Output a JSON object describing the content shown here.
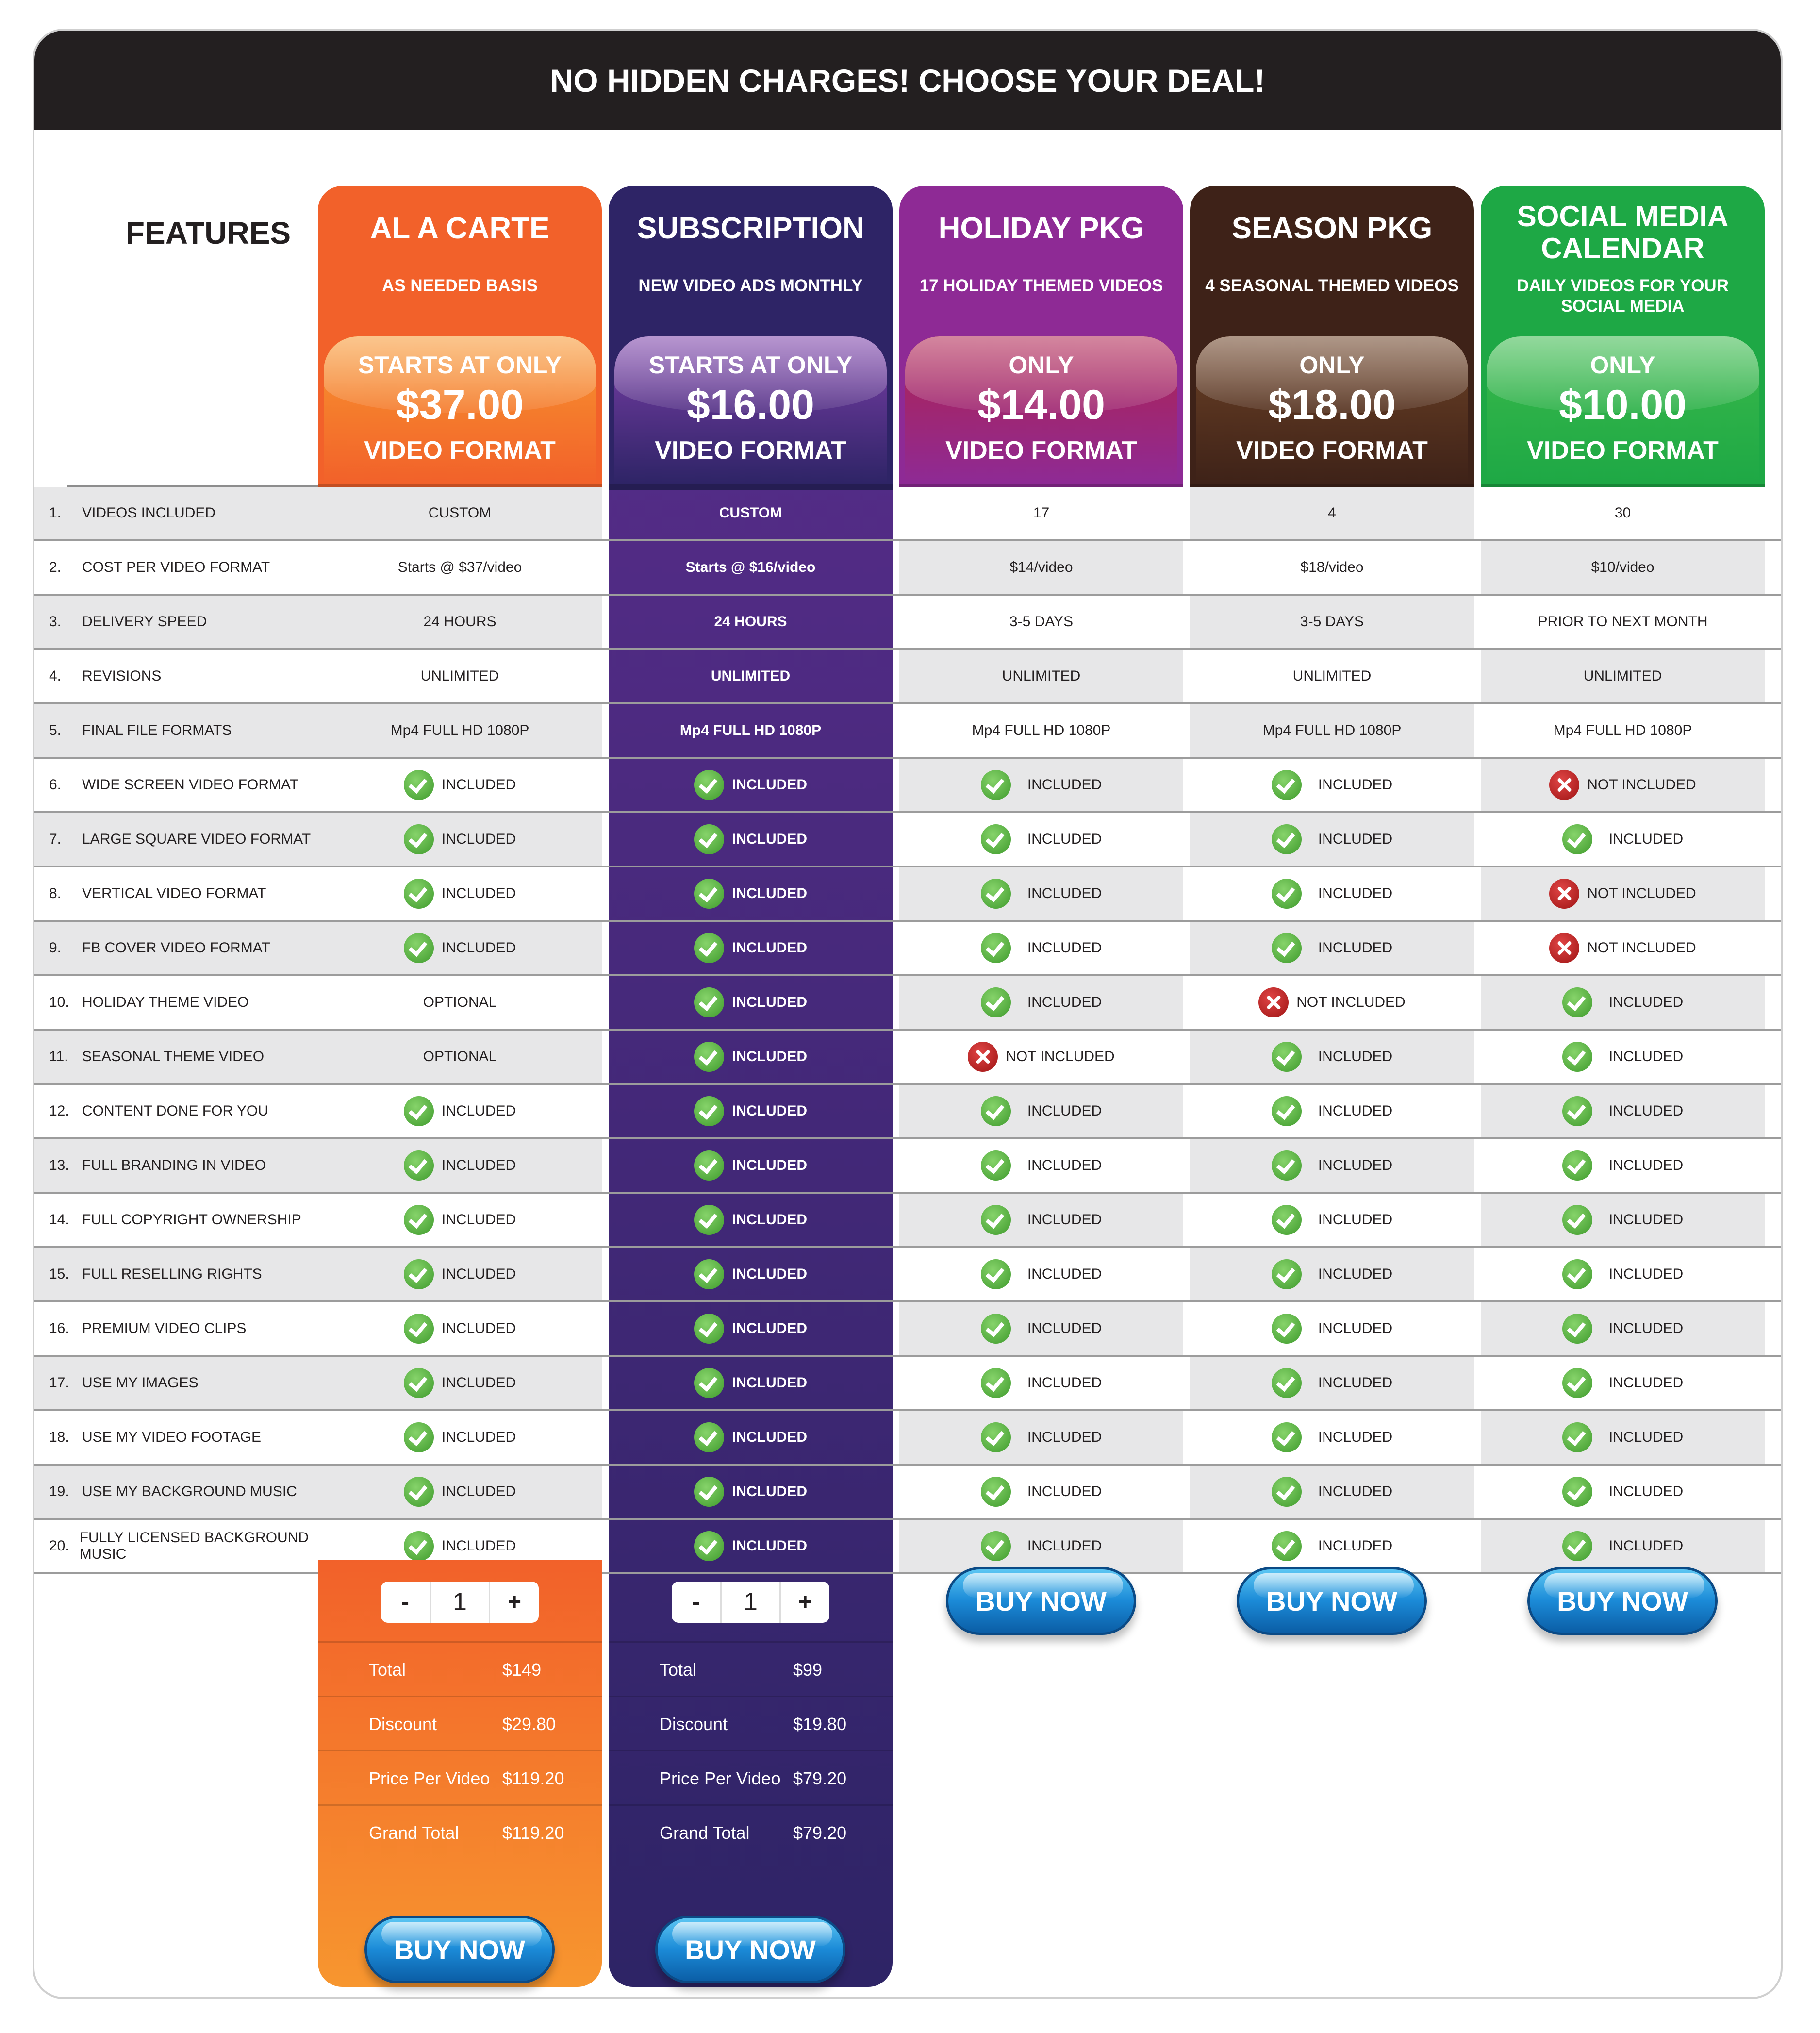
{
  "banner": {
    "title": "NO HIDDEN CHARGES! CHOOSE YOUR DEAL!"
  },
  "features_title": "FEATURES",
  "plans": [
    {
      "name": "AL A CARTE",
      "subtitle": "AS NEEDED BASIS",
      "price_prefix": "STARTS AT ONLY",
      "price": "$37.00",
      "price_suffix": "VIDEO FORMAT",
      "color": "#f2612a",
      "price_color": "#f7962f"
    },
    {
      "name": "SUBSCRIPTION",
      "subtitle": "NEW VIDEO ADS MONTHLY",
      "price_prefix": "STARTS AT ONLY",
      "price": "$16.00",
      "price_suffix": "VIDEO FORMAT",
      "color": "#2e2466",
      "price_color": "#7b3fa8"
    },
    {
      "name": "HOLIDAY PKG",
      "subtitle": "17 HOLIDAY THEMED VIDEOS",
      "price_prefix": "ONLY",
      "price": "$14.00",
      "price_suffix": "VIDEO FORMAT",
      "color": "#8e2a95",
      "price_color": "#b0234f"
    },
    {
      "name": "SEASON PKG",
      "subtitle": "4 SEASONAL THEMED VIDEOS",
      "price_prefix": "ONLY",
      "price": "$18.00",
      "price_suffix": "VIDEO FORMAT",
      "color": "#3e2218",
      "price_color": "#6d4226"
    },
    {
      "name": "SOCIAL MEDIA CALENDAR",
      "subtitle": "DAILY VIDEOS FOR YOUR SOCIAL MEDIA",
      "price_prefix": "ONLY",
      "price": "$10.00",
      "price_suffix": "VIDEO FORMAT",
      "color": "#1ea845",
      "price_color": "#3ab94b"
    }
  ],
  "rows": [
    {
      "num": "1.",
      "label": "VIDEOS INCLUDED",
      "cells": [
        {
          "t": "text",
          "v": "CUSTOM"
        },
        {
          "t": "text",
          "v": "CUSTOM"
        },
        {
          "t": "text",
          "v": "17"
        },
        {
          "t": "text",
          "v": "4"
        },
        {
          "t": "text",
          "v": "30"
        }
      ]
    },
    {
      "num": "2.",
      "label": "COST PER VIDEO FORMAT",
      "cells": [
        {
          "t": "text",
          "v": "Starts @ $37/video"
        },
        {
          "t": "text",
          "v": "Starts @ $16/video"
        },
        {
          "t": "text",
          "v": "$14/video"
        },
        {
          "t": "text",
          "v": "$18/video"
        },
        {
          "t": "text",
          "v": "$10/video"
        }
      ]
    },
    {
      "num": "3.",
      "label": "DELIVERY SPEED",
      "cells": [
        {
          "t": "text",
          "v": "24 HOURS"
        },
        {
          "t": "text",
          "v": "24 HOURS"
        },
        {
          "t": "text",
          "v": "3-5 DAYS"
        },
        {
          "t": "text",
          "v": "3-5 DAYS"
        },
        {
          "t": "text",
          "v": "PRIOR TO NEXT MONTH"
        }
      ]
    },
    {
      "num": "4.",
      "label": "REVISIONS",
      "cells": [
        {
          "t": "text",
          "v": "UNLIMITED"
        },
        {
          "t": "text",
          "v": "UNLIMITED"
        },
        {
          "t": "text",
          "v": "UNLIMITED"
        },
        {
          "t": "text",
          "v": "UNLIMITED"
        },
        {
          "t": "text",
          "v": "UNLIMITED"
        }
      ]
    },
    {
      "num": "5.",
      "label": "FINAL FILE FORMATS",
      "cells": [
        {
          "t": "text",
          "v": "Mp4 FULL HD 1080P"
        },
        {
          "t": "text",
          "v": "Mp4 FULL HD 1080P"
        },
        {
          "t": "text",
          "v": "Mp4 FULL HD 1080P"
        },
        {
          "t": "text",
          "v": "Mp4 FULL HD 1080P"
        },
        {
          "t": "text",
          "v": "Mp4 FULL HD 1080P"
        }
      ]
    },
    {
      "num": "6.",
      "label": "WIDE SCREEN VIDEO FORMAT",
      "cells": [
        {
          "t": "yes",
          "v": "INCLUDED"
        },
        {
          "t": "yes",
          "v": "INCLUDED"
        },
        {
          "t": "yes",
          "v": "INCLUDED"
        },
        {
          "t": "yes",
          "v": "INCLUDED"
        },
        {
          "t": "no",
          "v": "NOT INCLUDED"
        }
      ]
    },
    {
      "num": "7.",
      "label": "LARGE SQUARE VIDEO FORMAT",
      "cells": [
        {
          "t": "yes",
          "v": "INCLUDED"
        },
        {
          "t": "yes",
          "v": "INCLUDED"
        },
        {
          "t": "yes",
          "v": "INCLUDED"
        },
        {
          "t": "yes",
          "v": "INCLUDED"
        },
        {
          "t": "yes",
          "v": "INCLUDED"
        }
      ]
    },
    {
      "num": "8.",
      "label": "VERTICAL VIDEO FORMAT",
      "cells": [
        {
          "t": "yes",
          "v": "INCLUDED"
        },
        {
          "t": "yes",
          "v": "INCLUDED"
        },
        {
          "t": "yes",
          "v": "INCLUDED"
        },
        {
          "t": "yes",
          "v": "INCLUDED"
        },
        {
          "t": "no",
          "v": "NOT INCLUDED"
        }
      ]
    },
    {
      "num": "9.",
      "label": "FB COVER VIDEO FORMAT",
      "cells": [
        {
          "t": "yes",
          "v": "INCLUDED"
        },
        {
          "t": "yes",
          "v": "INCLUDED"
        },
        {
          "t": "yes",
          "v": "INCLUDED"
        },
        {
          "t": "yes",
          "v": "INCLUDED"
        },
        {
          "t": "no",
          "v": "NOT INCLUDED"
        }
      ]
    },
    {
      "num": "10.",
      "label": "HOLIDAY THEME VIDEO",
      "cells": [
        {
          "t": "text",
          "v": "OPTIONAL"
        },
        {
          "t": "yes",
          "v": "INCLUDED"
        },
        {
          "t": "yes",
          "v": "INCLUDED"
        },
        {
          "t": "no",
          "v": "NOT INCLUDED"
        },
        {
          "t": "yes",
          "v": "INCLUDED"
        }
      ]
    },
    {
      "num": "11.",
      "label": "SEASONAL THEME VIDEO",
      "cells": [
        {
          "t": "text",
          "v": "OPTIONAL"
        },
        {
          "t": "yes",
          "v": "INCLUDED"
        },
        {
          "t": "no",
          "v": "NOT INCLUDED"
        },
        {
          "t": "yes",
          "v": "INCLUDED"
        },
        {
          "t": "yes",
          "v": "INCLUDED"
        }
      ]
    },
    {
      "num": "12.",
      "label": "CONTENT DONE FOR YOU",
      "cells": [
        {
          "t": "yes",
          "v": "INCLUDED"
        },
        {
          "t": "yes",
          "v": "INCLUDED"
        },
        {
          "t": "yes",
          "v": "INCLUDED"
        },
        {
          "t": "yes",
          "v": "INCLUDED"
        },
        {
          "t": "yes",
          "v": "INCLUDED"
        }
      ]
    },
    {
      "num": "13.",
      "label": "FULL BRANDING IN VIDEO",
      "cells": [
        {
          "t": "yes",
          "v": "INCLUDED"
        },
        {
          "t": "yes",
          "v": "INCLUDED"
        },
        {
          "t": "yes",
          "v": "INCLUDED"
        },
        {
          "t": "yes",
          "v": "INCLUDED"
        },
        {
          "t": "yes",
          "v": "INCLUDED"
        }
      ]
    },
    {
      "num": "14.",
      "label": "FULL COPYRIGHT OWNERSHIP",
      "cells": [
        {
          "t": "yes",
          "v": "INCLUDED"
        },
        {
          "t": "yes",
          "v": "INCLUDED"
        },
        {
          "t": "yes",
          "v": "INCLUDED"
        },
        {
          "t": "yes",
          "v": "INCLUDED"
        },
        {
          "t": "yes",
          "v": "INCLUDED"
        }
      ]
    },
    {
      "num": "15.",
      "label": "FULL RESELLING RIGHTS",
      "cells": [
        {
          "t": "yes",
          "v": "INCLUDED"
        },
        {
          "t": "yes",
          "v": "INCLUDED"
        },
        {
          "t": "yes",
          "v": "INCLUDED"
        },
        {
          "t": "yes",
          "v": "INCLUDED"
        },
        {
          "t": "yes",
          "v": "INCLUDED"
        }
      ]
    },
    {
      "num": "16.",
      "label": "PREMIUM VIDEO CLIPS",
      "cells": [
        {
          "t": "yes",
          "v": "INCLUDED"
        },
        {
          "t": "yes",
          "v": "INCLUDED"
        },
        {
          "t": "yes",
          "v": "INCLUDED"
        },
        {
          "t": "yes",
          "v": "INCLUDED"
        },
        {
          "t": "yes",
          "v": "INCLUDED"
        }
      ]
    },
    {
      "num": "17.",
      "label": "USE MY IMAGES",
      "cells": [
        {
          "t": "yes",
          "v": "INCLUDED"
        },
        {
          "t": "yes",
          "v": "INCLUDED"
        },
        {
          "t": "yes",
          "v": "INCLUDED"
        },
        {
          "t": "yes",
          "v": "INCLUDED"
        },
        {
          "t": "yes",
          "v": "INCLUDED"
        }
      ]
    },
    {
      "num": "18.",
      "label": "USE MY VIDEO FOOTAGE",
      "cells": [
        {
          "t": "yes",
          "v": "INCLUDED"
        },
        {
          "t": "yes",
          "v": "INCLUDED"
        },
        {
          "t": "yes",
          "v": "INCLUDED"
        },
        {
          "t": "yes",
          "v": "INCLUDED"
        },
        {
          "t": "yes",
          "v": "INCLUDED"
        }
      ]
    },
    {
      "num": "19.",
      "label": "USE MY BACKGROUND MUSIC",
      "cells": [
        {
          "t": "yes",
          "v": "INCLUDED"
        },
        {
          "t": "yes",
          "v": "INCLUDED"
        },
        {
          "t": "yes",
          "v": "INCLUDED"
        },
        {
          "t": "yes",
          "v": "INCLUDED"
        },
        {
          "t": "yes",
          "v": "INCLUDED"
        }
      ]
    },
    {
      "num": "20.",
      "label": "FULLY LICENSED BACKGROUND MUSIC",
      "cells": [
        {
          "t": "yes",
          "v": "INCLUDED"
        },
        {
          "t": "yes",
          "v": "INCLUDED"
        },
        {
          "t": "yes",
          "v": "INCLUDED"
        },
        {
          "t": "yes",
          "v": "INCLUDED"
        },
        {
          "t": "yes",
          "v": "INCLUDED"
        }
      ]
    }
  ],
  "order_cards": [
    {
      "minus": "-",
      "quantity": "1",
      "plus": "+",
      "total_label": "Total",
      "total": "$149",
      "discount_label": "Discount",
      "discount": "$29.80",
      "ppv_label": "Price Per Video",
      "ppv": "$119.20",
      "grand_label": "Grand Total",
      "grand": "$119.20",
      "buy_label": "BUY NOW"
    },
    {
      "minus": "-",
      "quantity": "1",
      "plus": "+",
      "total_label": "Total",
      "total": "$99",
      "discount_label": "Discount",
      "discount": "$19.80",
      "ppv_label": "Price Per Video",
      "ppv": "$79.20",
      "grand_label": "Grand Total",
      "grand": "$79.20",
      "buy_label": "BUY NOW"
    }
  ],
  "buy_buttons": [
    "BUY NOW",
    "BUY NOW",
    "BUY NOW"
  ],
  "icons": {
    "included": "check-circle-icon",
    "not_included": "x-circle-icon"
  }
}
